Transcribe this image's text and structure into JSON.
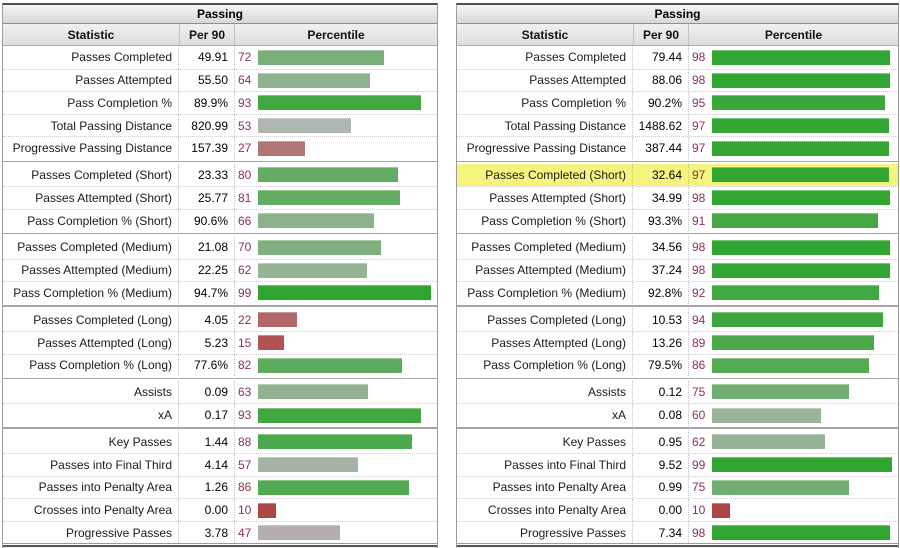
{
  "colors": {
    "scale_low": "#ac2828",
    "scale_mid": "#b7b7b7",
    "scale_high": "#2ca52c",
    "percentile_text": "#8f3241",
    "highlight_row": "#f7f37f"
  },
  "tables": [
    {
      "title": "Passing",
      "columns": {
        "statistic": "Statistic",
        "per90": "Per 90",
        "percentile": "Percentile"
      },
      "groups": [
        [
          {
            "label": "Passes Completed",
            "per90": "49.91",
            "percentile": 72
          },
          {
            "label": "Passes Attempted",
            "per90": "55.50",
            "percentile": 64
          },
          {
            "label": "Pass Completion %",
            "per90": "89.9%",
            "percentile": 93
          },
          {
            "label": "Total Passing Distance",
            "per90": "820.99",
            "percentile": 53
          },
          {
            "label": "Progressive Passing Distance",
            "per90": "157.39",
            "percentile": 27
          }
        ],
        [
          {
            "label": "Passes Completed (Short)",
            "per90": "23.33",
            "percentile": 80
          },
          {
            "label": "Passes Attempted (Short)",
            "per90": "25.77",
            "percentile": 81
          },
          {
            "label": "Pass Completion % (Short)",
            "per90": "90.6%",
            "percentile": 66
          }
        ],
        [
          {
            "label": "Passes Completed (Medium)",
            "per90": "21.08",
            "percentile": 70
          },
          {
            "label": "Passes Attempted (Medium)",
            "per90": "22.25",
            "percentile": 62
          },
          {
            "label": "Pass Completion % (Medium)",
            "per90": "94.7%",
            "percentile": 99
          }
        ],
        [
          {
            "label": "Passes Completed (Long)",
            "per90": "4.05",
            "percentile": 22
          },
          {
            "label": "Passes Attempted (Long)",
            "per90": "5.23",
            "percentile": 15
          },
          {
            "label": "Pass Completion % (Long)",
            "per90": "77.6%",
            "percentile": 82
          }
        ],
        [
          {
            "label": "Assists",
            "per90": "0.09",
            "percentile": 63
          },
          {
            "label": "xA",
            "per90": "0.17",
            "percentile": 93
          }
        ],
        [
          {
            "label": "Key Passes",
            "per90": "1.44",
            "percentile": 88
          },
          {
            "label": "Passes into Final Third",
            "per90": "4.14",
            "percentile": 57
          },
          {
            "label": "Passes into Penalty Area",
            "per90": "1.26",
            "percentile": 86
          },
          {
            "label": "Crosses into Penalty Area",
            "per90": "0.00",
            "percentile": 10
          },
          {
            "label": "Progressive Passes",
            "per90": "3.78",
            "percentile": 47
          }
        ]
      ]
    },
    {
      "title": "Passing",
      "columns": {
        "statistic": "Statistic",
        "per90": "Per 90",
        "percentile": "Percentile"
      },
      "groups": [
        [
          {
            "label": "Passes Completed",
            "per90": "79.44",
            "percentile": 98
          },
          {
            "label": "Passes Attempted",
            "per90": "88.06",
            "percentile": 98
          },
          {
            "label": "Pass Completion %",
            "per90": "90.2%",
            "percentile": 95
          },
          {
            "label": "Total Passing Distance",
            "per90": "1488.62",
            "percentile": 97
          },
          {
            "label": "Progressive Passing Distance",
            "per90": "387.44",
            "percentile": 97
          }
        ],
        [
          {
            "label": "Passes Completed (Short)",
            "per90": "32.64",
            "percentile": 97,
            "highlight": true
          },
          {
            "label": "Passes Attempted (Short)",
            "per90": "34.99",
            "percentile": 98
          },
          {
            "label": "Pass Completion % (Short)",
            "per90": "93.3%",
            "percentile": 91
          }
        ],
        [
          {
            "label": "Passes Completed (Medium)",
            "per90": "34.56",
            "percentile": 98
          },
          {
            "label": "Passes Attempted (Medium)",
            "per90": "37.24",
            "percentile": 98
          },
          {
            "label": "Pass Completion % (Medium)",
            "per90": "92.8%",
            "percentile": 92
          }
        ],
        [
          {
            "label": "Passes Completed (Long)",
            "per90": "10.53",
            "percentile": 94
          },
          {
            "label": "Passes Attempted (Long)",
            "per90": "13.26",
            "percentile": 89
          },
          {
            "label": "Pass Completion % (Long)",
            "per90": "79.5%",
            "percentile": 86
          }
        ],
        [
          {
            "label": "Assists",
            "per90": "0.12",
            "percentile": 75
          },
          {
            "label": "xA",
            "per90": "0.08",
            "percentile": 60
          }
        ],
        [
          {
            "label": "Key Passes",
            "per90": "0.95",
            "percentile": 62
          },
          {
            "label": "Passes into Final Third",
            "per90": "9.52",
            "percentile": 99
          },
          {
            "label": "Passes into Penalty Area",
            "per90": "0.99",
            "percentile": 75
          },
          {
            "label": "Crosses into Penalty Area",
            "per90": "0.00",
            "percentile": 10
          },
          {
            "label": "Progressive Passes",
            "per90": "7.34",
            "percentile": 98
          }
        ]
      ]
    }
  ],
  "chart_data": [
    {
      "type": "bar",
      "title": "Passing (left table) — percentile bars",
      "categories": [
        "Passes Completed",
        "Passes Attempted",
        "Pass Completion %",
        "Total Passing Distance",
        "Progressive Passing Distance",
        "Passes Completed (Short)",
        "Passes Attempted (Short)",
        "Pass Completion % (Short)",
        "Passes Completed (Medium)",
        "Passes Attempted (Medium)",
        "Pass Completion % (Medium)",
        "Passes Completed (Long)",
        "Passes Attempted (Long)",
        "Pass Completion % (Long)",
        "Assists",
        "xA",
        "Key Passes",
        "Passes into Final Third",
        "Passes into Penalty Area",
        "Crosses into Penalty Area",
        "Progressive Passes"
      ],
      "series": [
        {
          "name": "Per 90",
          "values": [
            49.91,
            55.5,
            89.9,
            820.99,
            157.39,
            23.33,
            25.77,
            90.6,
            21.08,
            22.25,
            94.7,
            4.05,
            5.23,
            77.6,
            0.09,
            0.17,
            1.44,
            4.14,
            1.26,
            0.0,
            3.78
          ]
        },
        {
          "name": "Percentile",
          "values": [
            72,
            64,
            93,
            53,
            27,
            80,
            81,
            66,
            70,
            62,
            99,
            22,
            15,
            82,
            63,
            93,
            88,
            57,
            86,
            10,
            47
          ]
        }
      ],
      "xlabel": "",
      "ylabel": "Percentile",
      "ylim": [
        0,
        100
      ],
      "legend_position": "none",
      "grid": false
    },
    {
      "type": "bar",
      "title": "Passing (right table) — percentile bars",
      "categories": [
        "Passes Completed",
        "Passes Attempted",
        "Pass Completion %",
        "Total Passing Distance",
        "Progressive Passing Distance",
        "Passes Completed (Short)",
        "Passes Attempted (Short)",
        "Pass Completion % (Short)",
        "Passes Completed (Medium)",
        "Passes Attempted (Medium)",
        "Pass Completion % (Medium)",
        "Passes Completed (Long)",
        "Passes Attempted (Long)",
        "Pass Completion % (Long)",
        "Assists",
        "xA",
        "Key Passes",
        "Passes into Final Third",
        "Passes into Penalty Area",
        "Crosses into Penalty Area",
        "Progressive Passes"
      ],
      "series": [
        {
          "name": "Per 90",
          "values": [
            79.44,
            88.06,
            90.2,
            1488.62,
            387.44,
            32.64,
            34.99,
            93.3,
            34.56,
            37.24,
            92.8,
            10.53,
            13.26,
            79.5,
            0.12,
            0.08,
            0.95,
            9.52,
            0.99,
            0.0,
            7.34
          ]
        },
        {
          "name": "Percentile",
          "values": [
            98,
            98,
            95,
            97,
            97,
            97,
            98,
            91,
            98,
            98,
            92,
            94,
            89,
            86,
            75,
            60,
            62,
            99,
            75,
            10,
            98
          ]
        }
      ],
      "xlabel": "",
      "ylabel": "Percentile",
      "ylim": [
        0,
        100
      ],
      "legend_position": "none",
      "grid": false
    }
  ]
}
